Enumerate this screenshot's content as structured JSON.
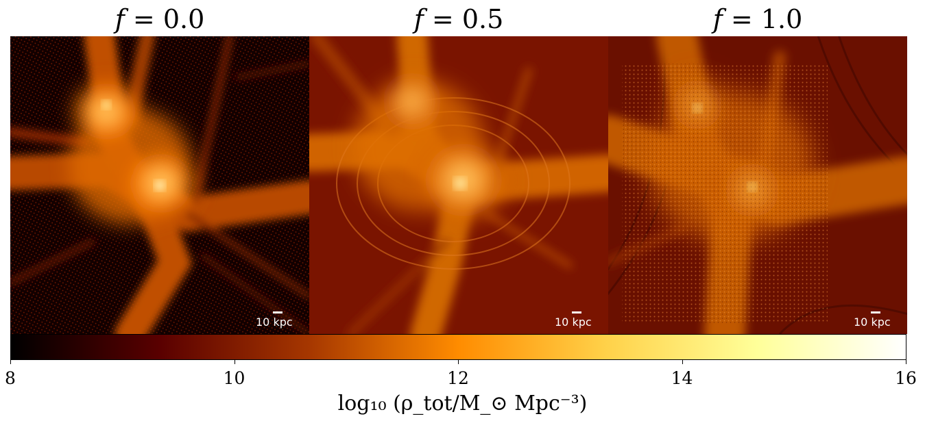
{
  "panels": [
    {
      "var": "f",
      "value": "= 0.0",
      "scale_label": "10 kpc"
    },
    {
      "var": "f",
      "value": "= 0.5",
      "scale_label": "10 kpc"
    },
    {
      "var": "f",
      "value": "= 1.0",
      "scale_label": "10 kpc"
    }
  ],
  "colorbar": {
    "colormap": "afmhot",
    "stops": [
      "#000000",
      "#5a0000",
      "#a63700",
      "#ff8c00",
      "#ffd24a",
      "#ffff99",
      "#ffffff"
    ],
    "range": [
      8,
      16
    ],
    "ticks": [
      "8",
      "10",
      "12",
      "14",
      "16"
    ],
    "label": "log₁₀ (ρ_tot/M_⊙ Mpc⁻³)"
  }
}
